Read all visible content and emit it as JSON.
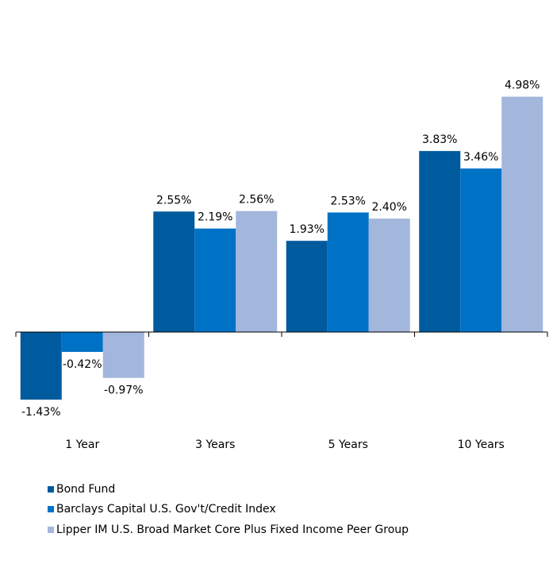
{
  "chart_data": {
    "type": "bar",
    "categories": [
      "1 Year",
      "3 Years",
      "5 Years",
      "10 Years"
    ],
    "series": [
      {
        "name": "Bond Fund",
        "color": "#005a9e",
        "values": [
          -1.43,
          2.55,
          1.93,
          3.83
        ],
        "labels": [
          "-1.43%",
          "2.55%",
          "1.93%",
          "3.83%"
        ]
      },
      {
        "name": "Barclays Capital U.S. Gov't/Credit Index",
        "color": "#0072c6",
        "values": [
          -0.42,
          2.19,
          2.53,
          3.46
        ],
        "labels": [
          "-0.42%",
          "2.19%",
          "2.53%",
          "3.46%"
        ]
      },
      {
        "name": "Lipper IM U.S. Broad Market Core Plus Fixed Income Peer Group",
        "color": "#a3b6dc",
        "values": [
          -0.97,
          2.56,
          2.4,
          4.98
        ],
        "labels": [
          "-0.97%",
          "2.56%",
          "2.40%",
          "4.98%"
        ]
      }
    ],
    "title": "",
    "xlabel": "",
    "ylabel": "",
    "ylim": [
      -1.75,
      6.9
    ],
    "grid": false,
    "legend_position": "bottom-left"
  }
}
